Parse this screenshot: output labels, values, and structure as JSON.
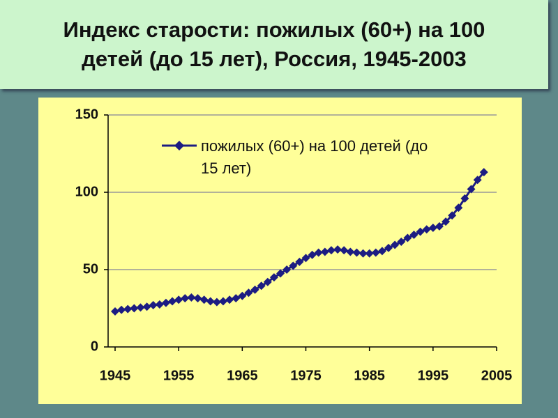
{
  "chart_data": {
    "type": "line",
    "title": "Индекс старости: пожилых (60+) на 100 детей (до 15 лет), Россия, 1945-2003",
    "x": [
      1945,
      1946,
      1947,
      1948,
      1949,
      1950,
      1951,
      1952,
      1953,
      1954,
      1955,
      1956,
      1957,
      1958,
      1959,
      1960,
      1961,
      1962,
      1963,
      1964,
      1965,
      1966,
      1967,
      1968,
      1969,
      1970,
      1971,
      1972,
      1973,
      1974,
      1975,
      1976,
      1977,
      1978,
      1979,
      1980,
      1981,
      1982,
      1983,
      1984,
      1985,
      1986,
      1987,
      1988,
      1989,
      1990,
      1991,
      1992,
      1993,
      1994,
      1995,
      1996,
      1997,
      1998,
      1999,
      2000,
      2001,
      2002,
      2003
    ],
    "series": [
      {
        "name": "пожилых (60+) на 100 детей (до 15 лет)",
        "color": "#1c1c82",
        "values": [
          23,
          24,
          24.5,
          25,
          25.5,
          26,
          27,
          27.5,
          28.5,
          29.5,
          30.5,
          31.5,
          32,
          31.5,
          30.5,
          29.5,
          29,
          29.5,
          30.5,
          31.5,
          33,
          35,
          37,
          39.5,
          42,
          45,
          47.5,
          50,
          52.5,
          55,
          57.5,
          59.5,
          61,
          61.5,
          62.5,
          63,
          62.5,
          61.5,
          61,
          60.5,
          60.5,
          61,
          62,
          64,
          66,
          68,
          70.5,
          72.5,
          74.5,
          76,
          77,
          78,
          81,
          85,
          90,
          96,
          102,
          108,
          113
        ]
      }
    ],
    "xlim": [
      1945,
      2005
    ],
    "xticks": [
      1945,
      1955,
      1965,
      1975,
      1985,
      1995,
      2005
    ],
    "ylim": [
      0,
      150
    ],
    "yticks": [
      0,
      50,
      100,
      150
    ],
    "grid": true,
    "legend": "top-left"
  }
}
